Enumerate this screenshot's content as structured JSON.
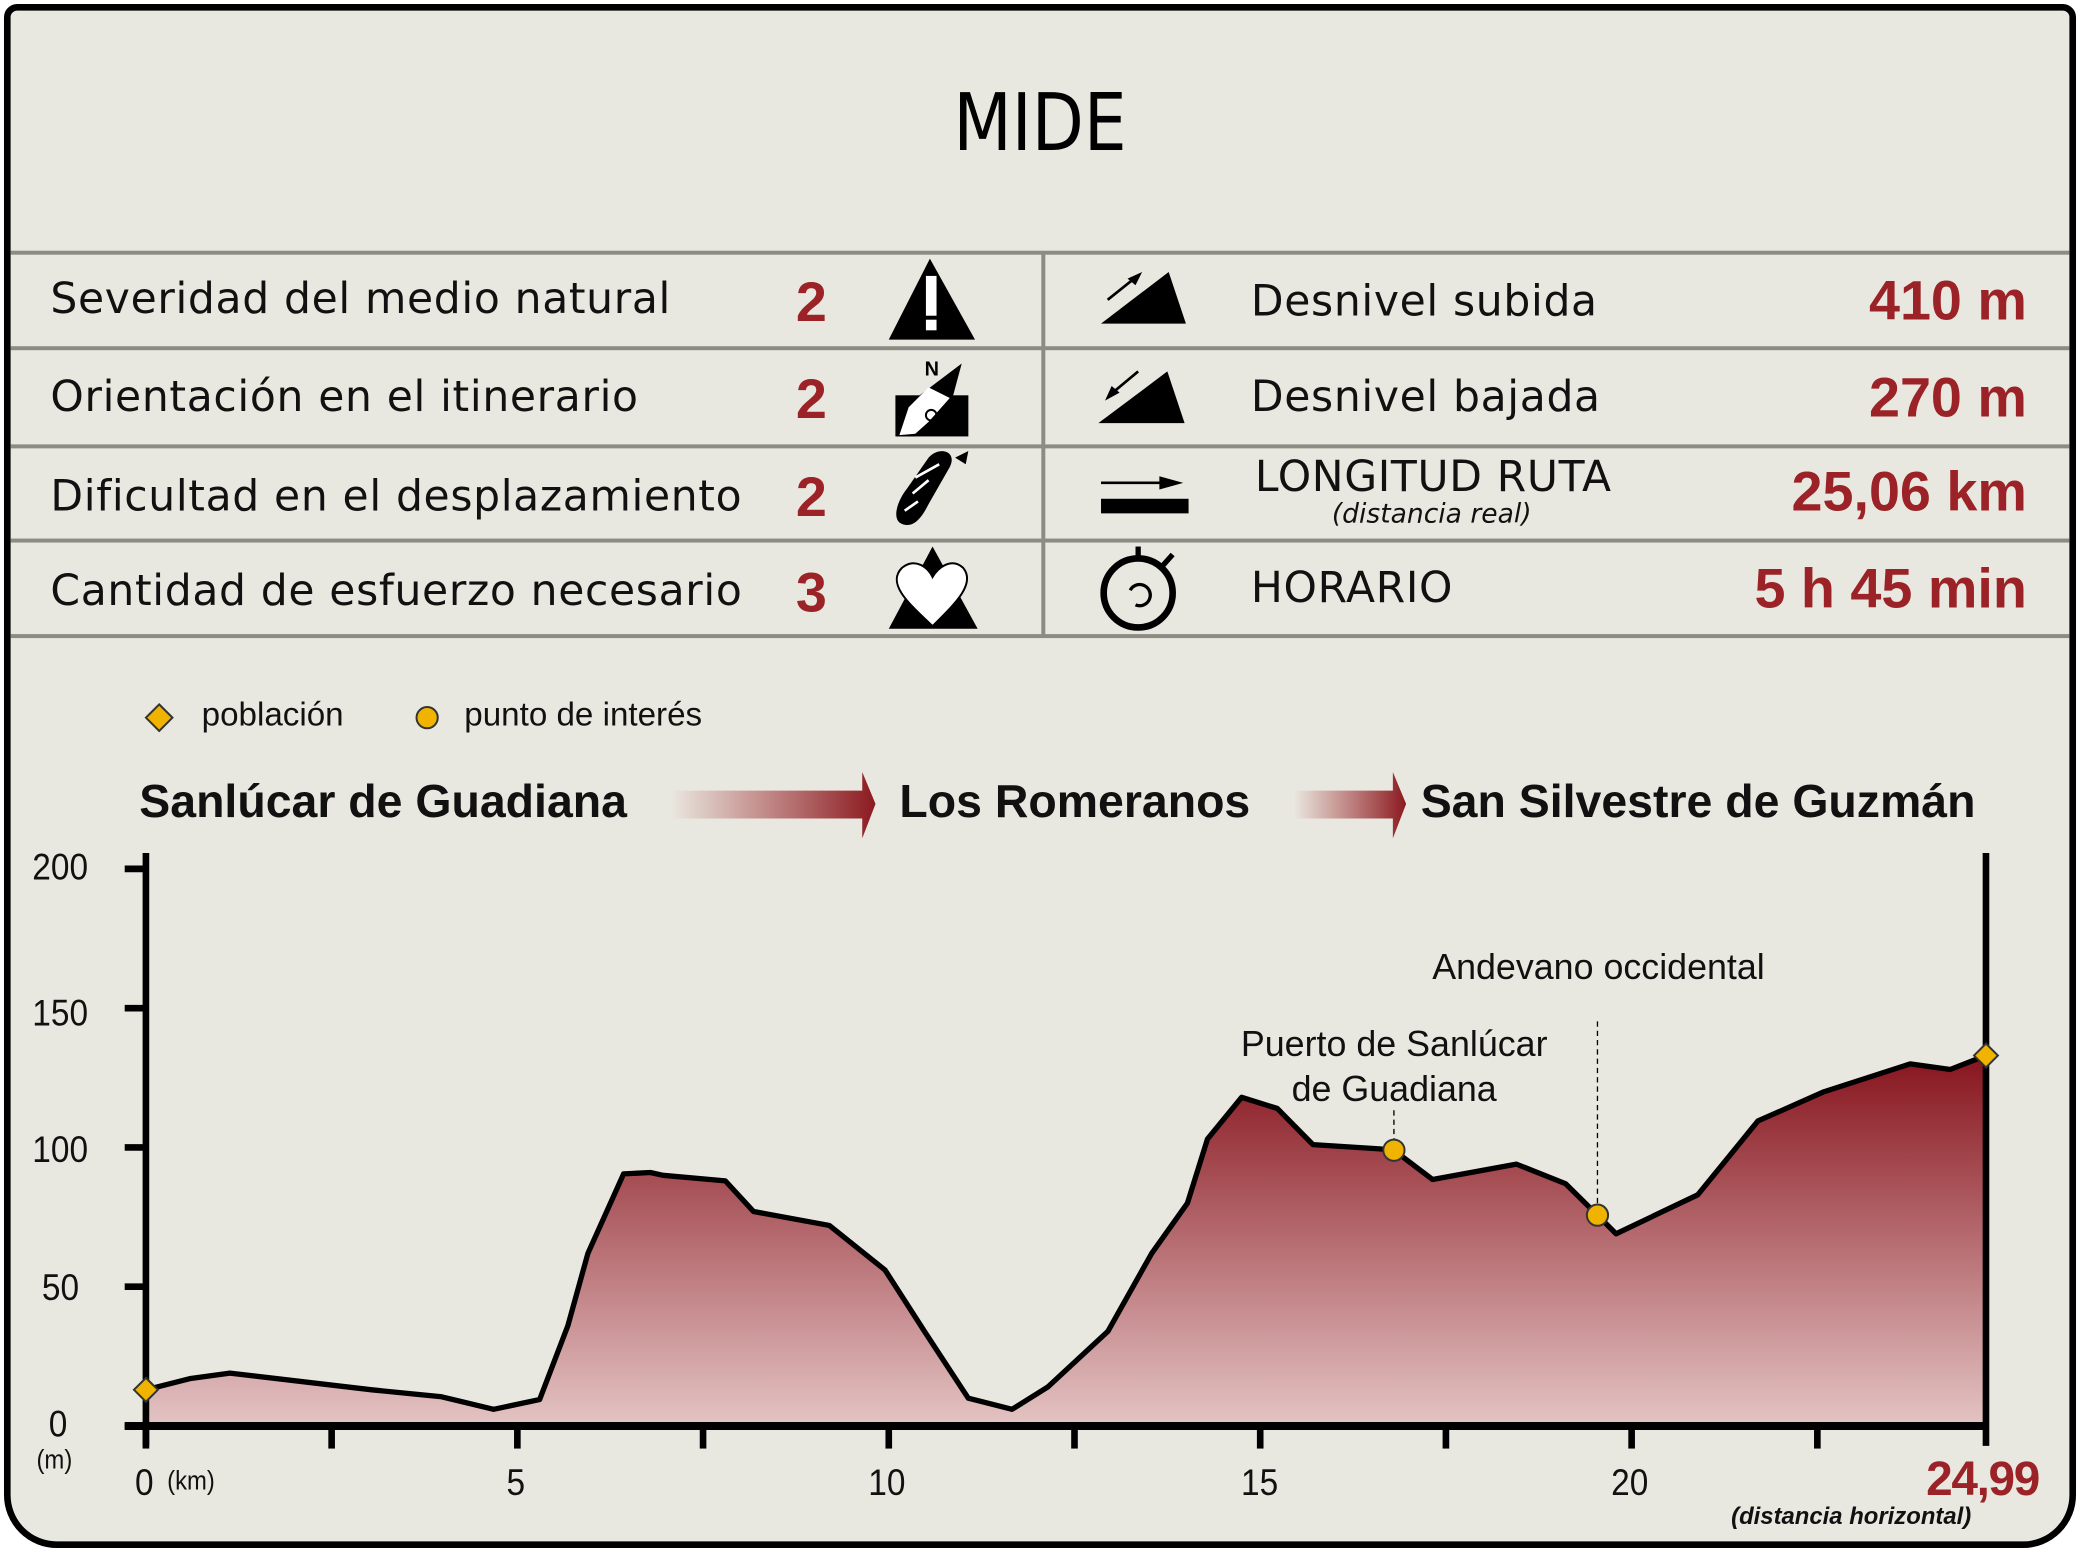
{
  "title": "MIDE",
  "mide": [
    {
      "label": "Severidad del medio natural",
      "value": "2",
      "icon": "warning-mountain-icon"
    },
    {
      "label": "Orientación en el itinerario",
      "value": "2",
      "icon": "compass-north-icon"
    },
    {
      "label": "Dificultad en el desplazamiento",
      "value": "2",
      "icon": "footprint-icon"
    },
    {
      "label": "Cantidad de esfuerzo necesario",
      "value": "3",
      "icon": "heart-mountain-icon"
    }
  ],
  "stats": [
    {
      "label": "Desnivel subida",
      "value": "410 m",
      "icon": "ascent-icon"
    },
    {
      "label": "Desnivel bajada",
      "value": "270 m",
      "icon": "descent-icon"
    },
    {
      "label": "LONGITUD RUTA",
      "sublabel": "(distancia real)",
      "value": "25,06 km",
      "icon": "distance-icon"
    },
    {
      "label": "HORARIO",
      "value": "5 h 45 min",
      "icon": "stopwatch-icon"
    }
  ],
  "legend": {
    "town": "población",
    "poi": "punto de interés"
  },
  "route": [
    "Sanlúcar de Guadiana",
    "Los Romeranos",
    "San Silvestre de Guzmán"
  ],
  "colors": {
    "accent": "#9b2226",
    "marker": "#f0b400",
    "background": "#e9e8e0"
  },
  "chart_data": {
    "type": "area",
    "xlabel": "(km)",
    "ylabel": "(m)",
    "xlim": [
      0,
      24.99
    ],
    "ylim": [
      0,
      200
    ],
    "xticks": [
      "0",
      "5",
      "10",
      "15",
      "20"
    ],
    "yticks": [
      "0",
      "50",
      "100",
      "150",
      "200"
    ],
    "end_label": "24,99",
    "end_sublabel": "(distancia horizontal)",
    "x": [
      0,
      0.59,
      1.13,
      3.04,
      3.98,
      4.68,
      5.3,
      5.68,
      5.95,
      6.43,
      6.79,
      6.96,
      7.8,
      8.18,
      9.2,
      9.95,
      10.48,
      11.07,
      11.66,
      12.14,
      12.95,
      13.54,
      14.02,
      14.29,
      14.75,
      15.23,
      15.71,
      16.61,
      16.8,
      17.32,
      18.45,
      19.11,
      19.54,
      19.79,
      20.89,
      21.7,
      22.59,
      23.75,
      24.29,
      24.77
    ],
    "y": [
      13,
      17,
      19,
      13,
      10.5,
      6,
      9.5,
      36,
      62,
      90.5,
      91,
      90,
      88,
      77,
      72,
      56,
      34,
      10,
      6,
      14,
      34,
      62,
      80,
      103,
      118,
      114,
      101,
      99.5,
      99,
      88.5,
      94,
      87,
      75.7,
      69,
      83,
      109.5,
      120,
      130,
      128,
      133
    ],
    "markers": [
      {
        "type": "town",
        "x": 0,
        "y": 13
      },
      {
        "type": "poi",
        "x": 16.8,
        "y": 99,
        "label": "Puerto de Sanlúcar\nde Guadiana"
      },
      {
        "type": "poi",
        "x": 19.54,
        "y": 75.7,
        "label": "Andevano occidental"
      },
      {
        "type": "town",
        "x": 24.77,
        "y": 133
      }
    ]
  }
}
